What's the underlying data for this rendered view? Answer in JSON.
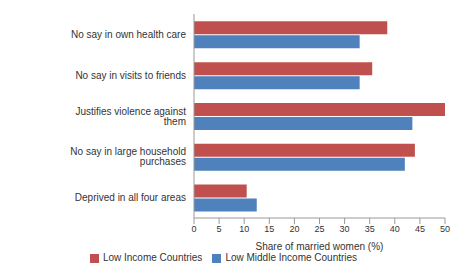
{
  "chart_data": {
    "type": "bar",
    "orientation": "horizontal",
    "x_label": "Share of married women (%)",
    "categories": [
      "No say in own health care",
      "No say in visits to friends",
      "Justifies violence against them",
      "No say in large household purchases",
      "Deprived in all four areas"
    ],
    "series": [
      {
        "name": "Low Income Countries",
        "color": "#c0504d",
        "values": [
          38.5,
          35.5,
          50,
          44,
          10.5
        ]
      },
      {
        "name": "Low Middle Income Countries",
        "color": "#4f81bd",
        "values": [
          33,
          33,
          43.5,
          42,
          12.5
        ]
      }
    ],
    "xlim": [
      0,
      50
    ],
    "xticks": [
      0,
      5,
      10,
      15,
      20,
      25,
      30,
      35,
      40,
      45,
      50
    ],
    "grid": false,
    "legend": "bottom"
  }
}
